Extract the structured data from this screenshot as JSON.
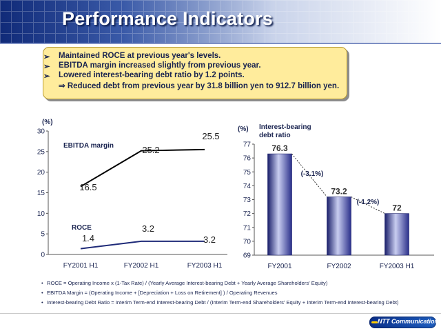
{
  "header": {
    "title": "Performance Indicators"
  },
  "summary": {
    "bullet_glyph": "➢",
    "points": [
      "Maintained ROCE at previous year's levels.",
      "EBITDA margin increased slightly from previous year.",
      "Lowered interest-bearing debt ratio by 1.2 points."
    ],
    "sub_point": "⇒ Reduced debt from previous year by 31.8 billion yen to 912.7 billion yen."
  },
  "chart_data": [
    {
      "type": "line",
      "title": "",
      "ylabel": "(%)",
      "xlabel": "",
      "ylim": [
        0,
        30
      ],
      "yticks": [
        "0",
        "5",
        "10",
        "15",
        "20",
        "25",
        "30"
      ],
      "categories": [
        "FY2001 H1",
        "FY2002 H1",
        "FY2003 H1"
      ],
      "series": [
        {
          "name": "EBITDA margin",
          "values": [
            16.5,
            25.2,
            25.5
          ],
          "color": "#000000"
        },
        {
          "name": "ROCE",
          "values": [
            1.4,
            3.2,
            3.2
          ],
          "color": "#1e2a78"
        }
      ],
      "data_labels": [
        [
          "16.5",
          "25.2",
          "25.5"
        ],
        [
          "1.4",
          "3.2",
          "3.2"
        ]
      ],
      "grid": false,
      "legend": "inline labels"
    },
    {
      "type": "bar",
      "title": "Interest-bearing debt ratio",
      "ylabel": "(%)",
      "xlabel": "",
      "ylim": [
        69,
        77
      ],
      "yticks": [
        "69",
        "70",
        "71",
        "72",
        "73",
        "74",
        "75",
        "76",
        "77"
      ],
      "categories": [
        "FY2001",
        "FY2002",
        "FY2003 H1"
      ],
      "values": [
        76.3,
        73.2,
        72
      ],
      "data_labels": [
        "76.3",
        "73.2",
        "72"
      ],
      "changes": [
        "(-3.1%)",
        "(-1.2%)"
      ],
      "bar_color": "#2a2f8a",
      "grid": false,
      "legend": "none"
    }
  ],
  "notes": {
    "bullet_glyph": "•",
    "items": [
      "ROCE = Operating Income x (1-Tax Rate) / (Yearly Average Interest-bearing Debt + Yearly Average Shareholders' Equity)",
      "EBITDA Margin = (Operating Income + [Depreciation + Loss on Retirement] ) / Operating Revenues",
      "Interest-bearing Debt Ratio = Interim Term-end Interest-bearing Debt / (Interim Term-end Shareholders' Equity + Interim Term-end Interest-bearing Debt)"
    ]
  },
  "footer": {
    "logo_text": "NTT Communications"
  }
}
